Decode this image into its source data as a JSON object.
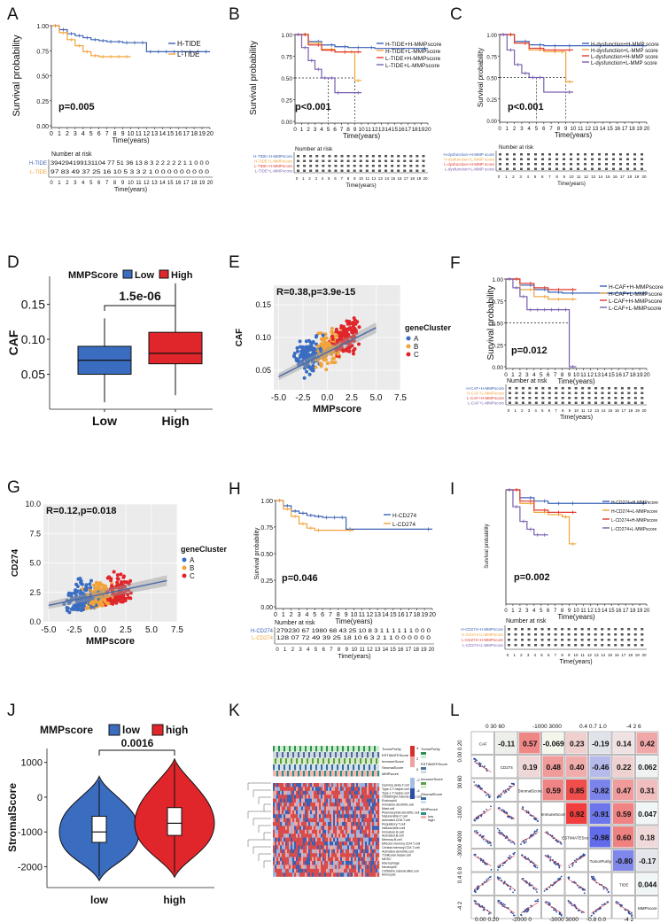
{
  "figure": {
    "panels": {
      "A": {
        "letter": "A",
        "ylabel": "Survival probability",
        "xlabel": "Time(years)",
        "pvalue": "p=0.005",
        "legend": [
          "H-TIDE",
          "L-TIDE"
        ],
        "risk_title": "Number at risk",
        "risk_labels": [
          "H-TIDE",
          "L-TIDE"
        ],
        "risk_rows": [
          "394294199131104 77 51 36 13 8 3 2 2 2 2 2 1 1 0 0 0",
          "97 83 49 37 25 16 10 5 3 3 2 1 0 0 0 0 0 0 0 0 0"
        ],
        "yticks": [
          "1.00",
          "0.75",
          "0.50",
          "0.25",
          "0.00"
        ]
      },
      "B": {
        "letter": "B",
        "ylabel": "Survival probability",
        "xlabel": "Time(years)",
        "pvalue": "p<0.001",
        "legend": [
          "H-TIDE+H-MMPscore",
          "H-TIDE+L-MMPscore",
          "L-TIDE+H-MMPscore",
          "L-TIDE+L-MMPscore"
        ],
        "risk_title": "Number at risk",
        "risk_labels": [
          "H-TIDE+H-MMPscore",
          "H-TIDE+L-MMPscore",
          "L-TIDE+H-MMPscore",
          "L-TIDE+L-MMPscore"
        ],
        "yticks": [
          "1.00",
          "0.75",
          "0.50",
          "0.25",
          "0.00"
        ]
      },
      "C": {
        "letter": "C",
        "ylabel": "Survival probability",
        "xlabel": "Time(years)",
        "pvalue": "p<0.001",
        "legend": [
          "H-dysfunction+H-MMP score",
          "H-dysfunction+L-MMP score",
          "L-dysfunction+H-MMP score",
          "L-dysfunction+L-MMP score"
        ],
        "risk_title": "Number at risk",
        "yticks": [
          "1.00",
          "0.75",
          "0.50",
          "0.25",
          "0.00"
        ]
      },
      "D": {
        "letter": "D",
        "legend_title": "MMPScore",
        "legend": [
          "Low",
          "High"
        ],
        "pvalue": "1.5e-06",
        "ylabel": "CAF",
        "categories": [
          "Low",
          "High"
        ],
        "yticks": [
          "0.15",
          "0.10",
          "0.05"
        ]
      },
      "E": {
        "letter": "E",
        "stat": "R=0.38,p=3.9e-15",
        "xlabel": "MMPscore",
        "ylabel": "CAF",
        "legend_title": "geneCluster",
        "legend": [
          "A",
          "B",
          "C"
        ],
        "xticks": [
          "-5.0",
          "-2.5",
          "0.0",
          "2.5",
          "5.0",
          "7.5"
        ],
        "yticks": [
          "0.15",
          "0.10",
          "0.05"
        ]
      },
      "F": {
        "letter": "F",
        "ylabel": "Survival probability",
        "xlabel": "Time(years)",
        "pvalue": "p=0.012",
        "legend": [
          "H-CAF+H-MMPscore",
          "H-CAF+L-MMPscore",
          "L-CAF+H-MMPscore",
          "L-CAF+L-MMPscore"
        ],
        "risk_title": "Number at risk",
        "yticks": [
          "1.00",
          "0.75",
          "0.50",
          "0.25",
          "0.00"
        ]
      },
      "G": {
        "letter": "G",
        "stat": "R=0.12,p=0.018",
        "xlabel": "MMPscore",
        "ylabel": "CD274",
        "legend_title": "geneCluster",
        "legend": [
          "A",
          "B",
          "C"
        ],
        "xticks": [
          "-5.0",
          "-2.5",
          "0.0",
          "2.5",
          "5.0",
          "7.5"
        ],
        "yticks": [
          "10.0",
          "7.5",
          "5.0",
          "2.5",
          "0.0"
        ]
      },
      "H": {
        "letter": "H",
        "ylabel": "Survival probability",
        "xlabel": "Time(years)",
        "pvalue": "p=0.046",
        "legend": [
          "H-CD274",
          "L-CD274"
        ],
        "risk_title": "Number at risk",
        "risk_labels": [
          "H-CD274",
          "L-CD274"
        ],
        "risk_rows": [
          "279230 67 1980 68 43 25 10 8 3 1 1 1 1 1 1 0 0 0",
          "128 07 72 49 39 25 18 10 6 3 2 1 1 0 0 0 0 0 0"
        ],
        "yticks": [
          "1.00",
          "0.75",
          "0.50",
          "0.25",
          "0.00"
        ]
      },
      "I": {
        "letter": "I",
        "ylabel": "Survival probability",
        "xlabel": "Time(years)",
        "pvalue": "p=0.002",
        "legend": [
          "H-CD274+H-MMPscore",
          "H-CD274+L-MMPscore",
          "L-CD274+H-MMPscore",
          "L-CD274+L-MMPscore"
        ],
        "risk_title": "Number at risk"
      },
      "J": {
        "letter": "J",
        "legend_title": "MMPscore",
        "legend": [
          "low",
          "high"
        ],
        "pvalue": "0.0016",
        "ylabel": "StromalScore",
        "categories": [
          "low",
          "high"
        ],
        "yticks": [
          "1000",
          "0",
          "-1000",
          "-2000"
        ]
      },
      "K": {
        "letter": "K",
        "annotation_labels": [
          "TumorPurity",
          "ESTIMATEScore",
          "ImmuneScore",
          "StromalScore",
          "MMPscore"
        ],
        "legend_labels": [
          "TumorPurity",
          "ESTIMATEScore",
          "ImmuneScore",
          "StromalScore",
          "MMPscore"
        ],
        "legend_groups": [
          "low",
          "high"
        ],
        "row_labels": [
          "Gamma.delta.T.cell",
          "Type.2.T.helper.cell",
          "Type.1.T.helper.cell",
          "CD56bright.natural.killer.cell",
          "Eosinophil",
          "Immature.dendritic.cell",
          "Mast.cell",
          "Plasmacytoid.dendritic.cell",
          "Natural.killer.T.cell",
          "Activated.CD8.T.cell",
          "Regulatory.T.cell",
          "Natural.killer.cell",
          "Immature.B.cell",
          "Activated.B.cell",
          "Memory.B.cell",
          "Effector.memory.CD4.T.cell",
          "Central.memory.CD4.T.cell",
          "Activated.dendritic.cell",
          "T.follicular.helper.cell",
          "MDSC",
          "Macrophage",
          "Neutrophil",
          "CD56dim.natural.killer.cell",
          "Monocyte"
        ]
      },
      "L": {
        "letter": "L",
        "vars": [
          "CAF",
          "CD274",
          "StromalScore",
          "ImmuneScore",
          "ESTIMATEScore",
          "TumorPurity",
          "TIDE",
          "MMPscore"
        ],
        "corr_values": [
          "-0.11",
          "0.57",
          "-0.069",
          "0.23",
          "-0.19",
          "0.14",
          "0.42",
          "0.19",
          "0.48",
          "0.40",
          "-0.46",
          "0.22",
          "0.062",
          "0.59",
          "0.85",
          "-0.82",
          "0.47",
          "0.31",
          "0.92",
          "-0.91",
          "0.59",
          "0.047",
          "-0.98",
          "0.60",
          "0.18",
          "-0.80",
          "-0.17",
          "0.044"
        ],
        "top_ticks": [
          "0 30 60",
          "-1000 3000",
          "0.4 0.7 1.0",
          "-4 2 6"
        ],
        "bottom_ticks": [
          "0.00 0.20",
          "-2000 0",
          "-3000 3000",
          "-0.8 0.0",
          "-4 2"
        ],
        "left_ticks": [
          "0.00 0.20",
          "30 60",
          "-1000",
          "-3000 4000",
          "0.4 0.8",
          "-4 2"
        ]
      }
    }
  },
  "chart_data": [
    {
      "panel": "A",
      "type": "line",
      "title": "",
      "xlabel": "Time(years)",
      "ylabel": "Survival probability",
      "ylim": [
        0,
        1
      ],
      "xlim": [
        0,
        20
      ],
      "series": [
        {
          "name": "H-TIDE",
          "color": "#3a62b5",
          "x": [
            0,
            1,
            2,
            3,
            4,
            5,
            6,
            7,
            8,
            9,
            10,
            11,
            12,
            13,
            14,
            15,
            16,
            17,
            18,
            19,
            20
          ],
          "y": [
            1,
            0.96,
            0.92,
            0.9,
            0.88,
            0.86,
            0.85,
            0.84,
            0.84,
            0.83,
            0.83,
            0.83,
            0.74,
            0.74,
            0.74,
            0.74,
            0.74,
            0.74,
            0.74,
            0.74,
            0.74
          ]
        },
        {
          "name": "L-TIDE",
          "color": "#f2a33a",
          "x": [
            0,
            1,
            2,
            3,
            4,
            5,
            6,
            7,
            8,
            9,
            10
          ],
          "y": [
            1,
            0.93,
            0.86,
            0.8,
            0.74,
            0.7,
            0.69,
            0.69,
            0.69,
            0.69,
            0.69
          ]
        }
      ]
    },
    {
      "panel": "B",
      "type": "line",
      "xlabel": "Time(years)",
      "ylabel": "Survival probability",
      "ylim": [
        0,
        1
      ],
      "xlim": [
        0,
        20
      ],
      "series": [
        {
          "name": "H-TIDE+H-MMPscore",
          "color": "#3a62b5",
          "x": [
            0,
            2,
            4,
            6,
            8,
            10,
            12,
            20
          ],
          "y": [
            1,
            0.92,
            0.88,
            0.86,
            0.85,
            0.85,
            0.84,
            0.84
          ]
        },
        {
          "name": "H-TIDE+L-MMPscore",
          "color": "#f2a33a",
          "x": [
            0,
            2,
            4,
            6,
            8,
            9,
            9,
            10
          ],
          "y": [
            1,
            0.9,
            0.83,
            0.8,
            0.8,
            0.8,
            0.47,
            0.47
          ]
        },
        {
          "name": "L-TIDE+H-MMPscore",
          "color": "#e03a2f",
          "x": [
            0,
            2,
            4,
            6,
            8,
            10
          ],
          "y": [
            1,
            0.88,
            0.82,
            0.8,
            0.8,
            0.8
          ]
        },
        {
          "name": "L-TIDE+L-MMPscore",
          "color": "#7a5fb0",
          "x": [
            0,
            1,
            2,
            3,
            4,
            5,
            6,
            7,
            10
          ],
          "y": [
            1,
            0.85,
            0.7,
            0.6,
            0.5,
            0.5,
            0.33,
            0.33,
            0.33
          ]
        }
      ]
    },
    {
      "panel": "C",
      "type": "line",
      "xlabel": "Time(years)",
      "ylabel": "Survival probability",
      "ylim": [
        0,
        1
      ],
      "xlim": [
        0,
        20
      ],
      "series": [
        {
          "name": "H-dysfunction+H-MMP score",
          "color": "#3a62b5",
          "x": [
            0,
            2,
            4,
            6,
            8,
            10,
            20
          ],
          "y": [
            1,
            0.92,
            0.88,
            0.87,
            0.87,
            0.87,
            0.87
          ]
        },
        {
          "name": "H-dysfunction+L-MMP score",
          "color": "#f2a33a",
          "x": [
            0,
            2,
            4,
            6,
            8,
            9,
            9,
            10
          ],
          "y": [
            1,
            0.9,
            0.82,
            0.8,
            0.8,
            0.8,
            0.45,
            0.45
          ]
        },
        {
          "name": "L-dysfunction+H-MMP score",
          "color": "#e03a2f",
          "x": [
            0,
            2,
            4,
            6,
            8,
            10
          ],
          "y": [
            1,
            0.9,
            0.84,
            0.82,
            0.82,
            0.82
          ]
        },
        {
          "name": "L-dysfunction+L-MMP score",
          "color": "#7a5fb0",
          "x": [
            0,
            1,
            2,
            3,
            4,
            5,
            6,
            10
          ],
          "y": [
            1,
            0.82,
            0.65,
            0.55,
            0.5,
            0.5,
            0.33,
            0.33
          ]
        }
      ]
    },
    {
      "panel": "D",
      "type": "box",
      "ylabel": "CAF",
      "categories": [
        "Low",
        "High"
      ],
      "ylim": [
        0.0,
        0.19
      ],
      "series": [
        {
          "name": "Low",
          "color": "#3a6cc0",
          "q1": 0.05,
          "median": 0.07,
          "q3": 0.09,
          "min": 0.01,
          "max": 0.13
        },
        {
          "name": "High",
          "color": "#e0262b",
          "q1": 0.065,
          "median": 0.08,
          "q3": 0.11,
          "min": 0.02,
          "max": 0.18
        }
      ]
    },
    {
      "panel": "E",
      "type": "scatter",
      "xlabel": "MMPscore",
      "ylabel": "CAF",
      "xlim": [
        -5.5,
        7.5
      ],
      "ylim": [
        0.02,
        0.18
      ],
      "fit": [
        [
          -5,
          0.04
        ],
        [
          5,
          0.115
        ]
      ]
    },
    {
      "panel": "F",
      "type": "line",
      "xlabel": "Time(years)",
      "ylabel": "Survival probability",
      "ylim": [
        0,
        1
      ],
      "xlim": [
        0,
        20
      ],
      "series": [
        {
          "name": "H-CAF+H-MMPscore",
          "color": "#3a62b5",
          "x": [
            0,
            2,
            4,
            6,
            8,
            10,
            20
          ],
          "y": [
            1,
            0.93,
            0.88,
            0.85,
            0.84,
            0.84,
            0.84
          ]
        },
        {
          "name": "H-CAF+L-MMPscore",
          "color": "#f2a33a",
          "x": [
            0,
            2,
            4,
            6,
            8,
            10
          ],
          "y": [
            1,
            0.88,
            0.8,
            0.77,
            0.77,
            0.77
          ]
        },
        {
          "name": "L-CAF+H-MMPscore",
          "color": "#e03a2f",
          "x": [
            0,
            2,
            4,
            6,
            8,
            10
          ],
          "y": [
            1,
            0.95,
            0.9,
            0.88,
            0.88,
            0.88
          ]
        },
        {
          "name": "L-CAF+L-MMPscore",
          "color": "#7a5fb0",
          "x": [
            0,
            1,
            2,
            3,
            4,
            5,
            6,
            7,
            8,
            9,
            10
          ],
          "y": [
            1,
            0.9,
            0.8,
            0.65,
            0.65,
            0.65,
            0.65,
            0.65,
            0.65,
            0,
            0
          ]
        }
      ]
    },
    {
      "panel": "G",
      "type": "scatter",
      "xlabel": "MMPscore",
      "ylabel": "CD274",
      "xlim": [
        -5.5,
        7.5
      ],
      "ylim": [
        0,
        10
      ],
      "fit": [
        [
          -5,
          1.4
        ],
        [
          6.5,
          3.5
        ]
      ]
    },
    {
      "panel": "H",
      "type": "line",
      "xlabel": "Time(years)",
      "ylabel": "Survival probability",
      "ylim": [
        0,
        1
      ],
      "xlim": [
        0,
        20
      ],
      "series": [
        {
          "name": "H-CD274",
          "color": "#3a62b5",
          "x": [
            0,
            1,
            2,
            3,
            4,
            5,
            6,
            7,
            8,
            9,
            10,
            20
          ],
          "y": [
            1,
            0.95,
            0.9,
            0.88,
            0.86,
            0.85,
            0.84,
            0.84,
            0.84,
            0.73,
            0.73,
            0.73
          ]
        },
        {
          "name": "L-CD274",
          "color": "#f2a33a",
          "x": [
            0,
            1,
            2,
            3,
            4,
            5,
            6,
            10
          ],
          "y": [
            1,
            0.92,
            0.85,
            0.78,
            0.74,
            0.72,
            0.72,
            0.72
          ]
        }
      ]
    },
    {
      "panel": "I",
      "type": "line",
      "xlabel": "Time(years)",
      "ylabel": "Survival probability",
      "ylim": [
        0,
        1
      ],
      "xlim": [
        0,
        20
      ],
      "series": [
        {
          "name": "H-CD274+H-MMPscore",
          "color": "#3a62b5",
          "x": [
            0,
            2,
            4,
            6,
            8,
            10,
            20
          ],
          "y": [
            1,
            0.93,
            0.9,
            0.88,
            0.88,
            0.88,
            0.88
          ]
        },
        {
          "name": "H-CD274+L-MMPscore",
          "color": "#f2a33a",
          "x": [
            0,
            2,
            4,
            6,
            8,
            9,
            9,
            10
          ],
          "y": [
            1,
            0.88,
            0.8,
            0.78,
            0.76,
            0.76,
            0.52,
            0.52
          ]
        },
        {
          "name": "L-CD274+H-MMPscore",
          "color": "#e03a2f",
          "x": [
            0,
            2,
            4,
            6,
            8,
            10
          ],
          "y": [
            1,
            0.9,
            0.82,
            0.8,
            0.8,
            0.8
          ]
        },
        {
          "name": "L-CD274+L-MMPscore",
          "color": "#7a5fb0",
          "x": [
            0,
            1,
            2,
            3,
            4,
            5,
            6
          ],
          "y": [
            1,
            0.85,
            0.72,
            0.65,
            0.6,
            0.6,
            0.6
          ]
        }
      ]
    },
    {
      "panel": "J",
      "type": "violin",
      "ylabel": "StromalScore",
      "categories": [
        "low",
        "high"
      ],
      "ylim": [
        -2600,
        1400
      ],
      "series": [
        {
          "name": "low",
          "color": "#3a6cc0",
          "q1": -1300,
          "median": -1000,
          "q3": -550,
          "min": -2400,
          "max": 600
        },
        {
          "name": "high",
          "color": "#e0262b",
          "q1": -1100,
          "median": -750,
          "q3": -300,
          "min": -2300,
          "max": 1100
        }
      ]
    }
  ]
}
